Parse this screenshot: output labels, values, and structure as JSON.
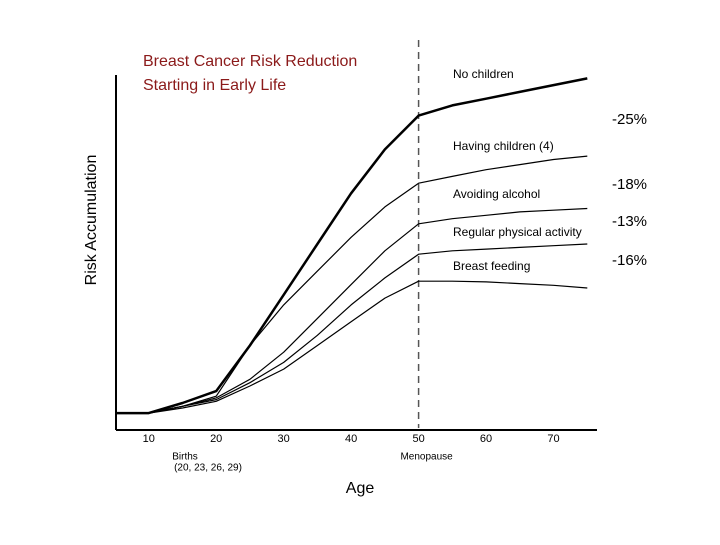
{
  "chart_data": {
    "type": "line",
    "title_lines": [
      "Breast Cancer Risk Reduction",
      "Starting in Early Life"
    ],
    "y_label": "Risk Accumulation",
    "x_label": "Age",
    "x": [
      5,
      10,
      15,
      20,
      25,
      30,
      35,
      40,
      45,
      50,
      55,
      60,
      65,
      70,
      75
    ],
    "series": [
      {
        "name": "No children",
        "color": "#000000",
        "bold": true,
        "values": [
          0,
          0,
          3,
          6.5,
          20,
          35,
          50,
          65,
          78,
          88,
          91,
          93,
          95,
          97,
          99
        ]
      },
      {
        "name": "Having children (4)",
        "color": "#000000",
        "values": [
          0,
          0,
          2,
          5,
          20,
          32,
          42,
          52,
          61,
          68,
          70,
          72,
          73.5,
          75,
          76
        ]
      },
      {
        "name": "Avoiding alcohol",
        "color": "#000000",
        "values": [
          0,
          0,
          2,
          4.5,
          10,
          18,
          28,
          38,
          48,
          56,
          57.5,
          58.5,
          59.5,
          60,
          60.5
        ]
      },
      {
        "name": "Regular physical activity",
        "color": "#000000",
        "values": [
          0,
          0,
          2,
          4,
          9,
          15,
          23,
          32,
          40,
          47,
          48,
          48.5,
          49,
          49.5,
          50
        ]
      },
      {
        "name": "Breast feeding",
        "color": "#000000",
        "values": [
          0,
          0,
          1.5,
          3.5,
          8,
          13,
          20,
          27,
          34,
          39,
          39,
          38.8,
          38.3,
          37.8,
          37
        ]
      }
    ],
    "reductions": [
      {
        "value": -25,
        "label": "-25%"
      },
      {
        "value": -18,
        "label": "-18%"
      },
      {
        "value": -13,
        "label": "-13%"
      },
      {
        "value": -16,
        "label": "-16%"
      }
    ],
    "menopause": {
      "x": 50,
      "label": "Menopause"
    },
    "births": {
      "label": "Births",
      "ages": "(20, 23, 26, 29)"
    },
    "xlim": [
      5,
      76
    ],
    "ylim": [
      -5,
      100
    ],
    "xticks": [
      10,
      20,
      30,
      40,
      50,
      60,
      70
    ]
  }
}
